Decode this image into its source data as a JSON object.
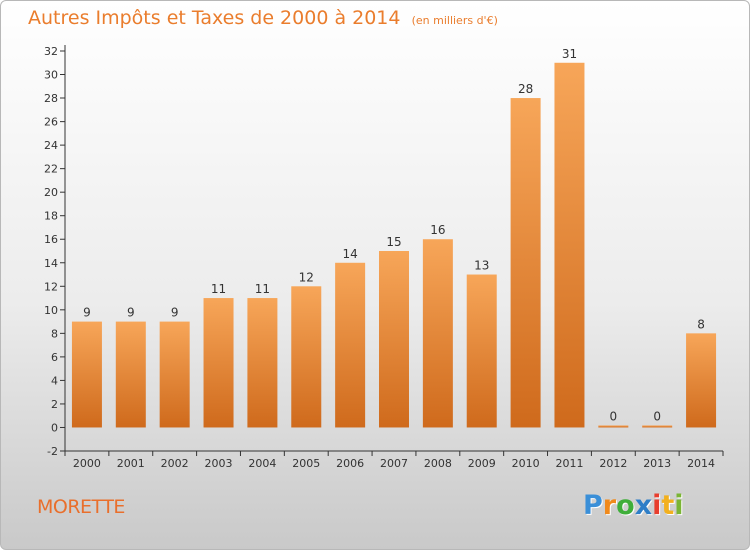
{
  "title": "Autres Impôts et Taxes de 2000 à 2014",
  "unit": "(en milliers d'€)",
  "commune": "MORETTE",
  "logo": {
    "letters": [
      "P",
      "r",
      "o",
      "x",
      "i",
      "t",
      "i"
    ],
    "colors": [
      "#3a8fd8",
      "#f08a1c",
      "#3fae3a",
      "#2e7ec7",
      "#e83e2e",
      "#f2b01e",
      "#7ab534"
    ]
  },
  "colors": {
    "bar_top": "#f7a659",
    "bar_bottom": "#cf6a1c",
    "title": "#ea7d2d"
  },
  "chart_data": {
    "type": "bar",
    "title": "Autres Impôts et Taxes de 2000 à 2014",
    "subtitle": "(en milliers d'€)",
    "xlabel": "",
    "ylabel": "",
    "categories": [
      "2000",
      "2001",
      "2002",
      "2003",
      "2004",
      "2005",
      "2006",
      "2007",
      "2008",
      "2009",
      "2010",
      "2011",
      "2012",
      "2013",
      "2014"
    ],
    "values": [
      9,
      9,
      9,
      11,
      11,
      12,
      14,
      15,
      16,
      13,
      28,
      31,
      0,
      0,
      8
    ],
    "ylim": [
      -2,
      32
    ],
    "yticks": [
      -2,
      0,
      2,
      4,
      6,
      8,
      10,
      12,
      14,
      16,
      18,
      20,
      22,
      24,
      26,
      28,
      30,
      32
    ],
    "grid": false,
    "legend": "none"
  }
}
